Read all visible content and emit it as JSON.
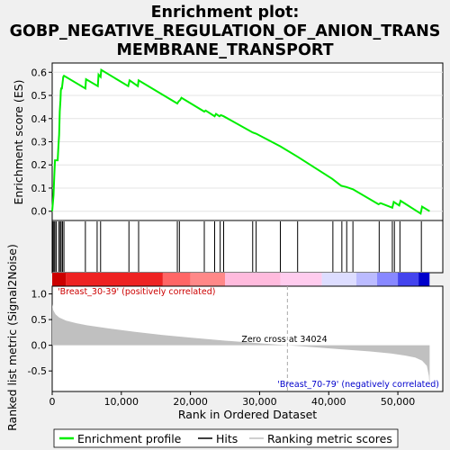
{
  "title_line1": "Enrichment plot:",
  "title_line2": "GOBP_NEGATIVE_REGULATION_OF_ANION_TRANS",
  "title_line3": "MEMBRANE_TRANSPORT",
  "colors": {
    "es_line": "#00ee00",
    "hits": "#000000",
    "metric_fill": "#c0c0c0",
    "pos_label": "#cc0000",
    "neg_label": "#0000cc"
  },
  "chart_data": {
    "type": "line",
    "es_panel": {
      "ylabel": "Enrichment score (ES)",
      "ylim": [
        -0.04,
        0.64
      ],
      "yticks": [
        0.0,
        0.1,
        0.2,
        0.3,
        0.4,
        0.5,
        0.6
      ],
      "ytick_labels": [
        "0.0",
        "0.1",
        "0.2",
        "0.3",
        "0.4",
        "0.5",
        "0.6"
      ],
      "series": [
        {
          "name": "Enrichment profile",
          "x": [
            0,
            200,
            300,
            400,
            800,
            900,
            1000,
            1100,
            1200,
            1250,
            1300,
            1400,
            1600,
            1700,
            4800,
            4900,
            6600,
            6700,
            7000,
            7100,
            11000,
            11200,
            12400,
            12500,
            18100,
            18300,
            18500,
            18700,
            22000,
            22200,
            23500,
            23700,
            24200,
            24400,
            24800,
            29000,
            29500,
            33000,
            35500,
            40500,
            41800,
            42500,
            43500,
            47200,
            47500,
            49200,
            49400,
            50200,
            50400,
            53300,
            53500,
            54600
          ],
          "y": [
            0.0,
            0.07,
            0.15,
            0.22,
            0.22,
            0.28,
            0.33,
            0.43,
            0.48,
            0.52,
            0.53,
            0.53,
            0.58,
            0.585,
            0.53,
            0.57,
            0.54,
            0.59,
            0.58,
            0.61,
            0.54,
            0.565,
            0.54,
            0.565,
            0.465,
            0.475,
            0.48,
            0.49,
            0.43,
            0.435,
            0.41,
            0.42,
            0.41,
            0.415,
            0.41,
            0.34,
            0.335,
            0.28,
            0.235,
            0.14,
            0.11,
            0.105,
            0.095,
            0.03,
            0.035,
            0.015,
            0.04,
            0.025,
            0.045,
            -0.01,
            0.02,
            0.0
          ]
        }
      ],
      "hits": [
        100,
        250,
        400,
        600,
        950,
        1150,
        1300,
        1500,
        1700,
        4800,
        6500,
        7000,
        11100,
        12500,
        18100,
        18400,
        22000,
        23500,
        24300,
        24800,
        29000,
        29500,
        33000,
        35500,
        40600,
        41900,
        42600,
        43500,
        47300,
        49200,
        49500,
        50300,
        53400
      ]
    },
    "metric_panel": {
      "ylabel": "Ranked list metric (Signal2Noise)",
      "xlabel": "Rank in Ordered Dataset",
      "ylim": [
        -0.9,
        1.15
      ],
      "yticks": [
        -0.5,
        0.0,
        0.5,
        1.0
      ],
      "ytick_labels": [
        "-0.5",
        "0.0",
        "0.5",
        "1.0"
      ],
      "xlim": [
        0,
        56500
      ],
      "xticks": [
        0,
        10000,
        20000,
        30000,
        40000,
        50000
      ],
      "xtick_labels": [
        "0",
        "10,000",
        "20,000",
        "30,000",
        "40,000",
        "50,000"
      ],
      "metric_x": [
        0,
        150,
        500,
        1000,
        2000,
        3500,
        5000,
        8000,
        12000,
        16000,
        20000,
        25000,
        30000,
        34024,
        38000,
        42000,
        46000,
        49000,
        51000,
        52500,
        53500,
        54200,
        54500,
        54600
      ],
      "metric_y": [
        0.8,
        0.68,
        0.6,
        0.54,
        0.48,
        0.43,
        0.39,
        0.33,
        0.26,
        0.2,
        0.15,
        0.09,
        0.04,
        0.0,
        -0.04,
        -0.08,
        -0.12,
        -0.16,
        -0.2,
        -0.24,
        -0.3,
        -0.4,
        -0.6,
        -0.82
      ],
      "zero_cross_label": "Zero cross at 34024",
      "zero_cross": 34024,
      "pos_label": "'Breast_30-39' (positively correlated)",
      "neg_label": "'Breast_70-79' (negatively correlated)"
    },
    "heatmap_stops": [
      {
        "at": 0,
        "color": "#cc0000"
      },
      {
        "at": 2000,
        "color": "#ee2222"
      },
      {
        "at": 16000,
        "color": "#ff6666"
      },
      {
        "at": 20000,
        "color": "#ff8888"
      },
      {
        "at": 25000,
        "color": "#ffbbdd"
      },
      {
        "at": 33000,
        "color": "#ffccee"
      },
      {
        "at": 39000,
        "color": "#ddddff"
      },
      {
        "at": 44000,
        "color": "#bbbbff"
      },
      {
        "at": 47000,
        "color": "#8888ff"
      },
      {
        "at": 50000,
        "color": "#4444ee"
      },
      {
        "at": 53000,
        "color": "#0000cc"
      }
    ],
    "legend": [
      {
        "label": "Enrichment profile",
        "kind": "line-green"
      },
      {
        "label": "Hits",
        "kind": "line-black"
      },
      {
        "label": "Ranking metric scores",
        "kind": "line-gray"
      }
    ]
  }
}
